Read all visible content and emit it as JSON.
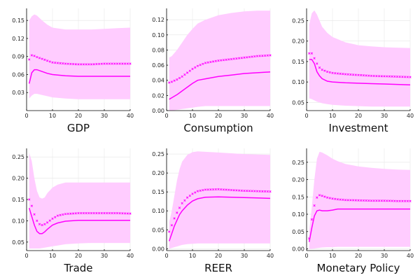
{
  "chart_data": [
    {
      "type": "line",
      "xlabel": "GDP",
      "xlim": [
        0,
        40
      ],
      "ylim": [
        0,
        0.17
      ],
      "xticks": [
        0,
        10,
        20,
        30,
        40
      ],
      "yticks": [
        0.03,
        0.06,
        0.09,
        0.12,
        0.15
      ],
      "ytick_labels": [
        "0.03",
        "0.06",
        "0.09",
        "0.12",
        "0.15"
      ],
      "colors": {
        "line": "#ff00ff",
        "band": "#ffccff"
      },
      "x": [
        1,
        2,
        3,
        4,
        6,
        8,
        10,
        15,
        20,
        25,
        30,
        35,
        40
      ],
      "band_upper": [
        0.15,
        0.157,
        0.16,
        0.158,
        0.15,
        0.143,
        0.138,
        0.135,
        0.135,
        0.135,
        0.136,
        0.137,
        0.138
      ],
      "band_lower": [
        0.02,
        0.025,
        0.028,
        0.028,
        0.026,
        0.024,
        0.022,
        0.02,
        0.019,
        0.019,
        0.019,
        0.019,
        0.019
      ],
      "line": [
        0.045,
        0.063,
        0.068,
        0.068,
        0.065,
        0.062,
        0.06,
        0.058,
        0.057,
        0.057,
        0.057,
        0.057,
        0.057
      ],
      "markers": [
        0.085,
        0.092,
        0.091,
        0.089,
        0.086,
        0.083,
        0.08,
        0.078,
        0.077,
        0.077,
        0.078,
        0.078,
        0.078
      ]
    },
    {
      "type": "line",
      "xlabel": "Consumption",
      "xlim": [
        0,
        40
      ],
      "ylim": [
        0,
        0.135
      ],
      "xticks": [
        0,
        10,
        20,
        30,
        40
      ],
      "yticks": [
        0.0,
        0.02,
        0.04,
        0.06,
        0.08,
        0.1,
        0.12
      ],
      "ytick_labels": [
        "0.00",
        "0.02",
        "0.04",
        "0.06",
        "0.08",
        "0.10",
        "0.12"
      ],
      "colors": {
        "line": "#ff00ff",
        "band": "#ffccff"
      },
      "x": [
        1,
        2,
        4,
        6,
        8,
        10,
        12,
        15,
        20,
        25,
        30,
        35,
        40
      ],
      "band_upper": [
        0.07,
        0.072,
        0.08,
        0.09,
        0.1,
        0.108,
        0.115,
        0.12,
        0.126,
        0.129,
        0.131,
        0.132,
        0.132
      ],
      "band_lower": [
        0.0,
        0.0,
        0.001,
        0.002,
        0.003,
        0.004,
        0.005,
        0.006,
        0.006,
        0.006,
        0.006,
        0.006,
        0.006
      ],
      "line": [
        0.015,
        0.017,
        0.021,
        0.026,
        0.031,
        0.036,
        0.04,
        0.042,
        0.045,
        0.047,
        0.049,
        0.05,
        0.051
      ],
      "markers": [
        0.037,
        0.038,
        0.041,
        0.045,
        0.05,
        0.055,
        0.059,
        0.063,
        0.066,
        0.068,
        0.07,
        0.072,
        0.073
      ]
    },
    {
      "type": "line",
      "xlabel": "Investment",
      "xlim": [
        0,
        40
      ],
      "ylim": [
        0.03,
        0.28
      ],
      "xticks": [
        0,
        10,
        20,
        30,
        40
      ],
      "yticks": [
        0.05,
        0.1,
        0.15,
        0.2,
        0.25
      ],
      "ytick_labels": [
        "0.05",
        "0.10",
        "0.15",
        "0.20",
        "0.25"
      ],
      "colors": {
        "line": "#ff00ff",
        "band": "#ffccff"
      },
      "x": [
        1,
        2,
        3,
        4,
        5,
        6,
        8,
        10,
        15,
        20,
        25,
        30,
        35,
        40
      ],
      "band_upper": [
        0.24,
        0.268,
        0.275,
        0.265,
        0.25,
        0.235,
        0.22,
        0.21,
        0.197,
        0.19,
        0.187,
        0.185,
        0.184,
        0.183
      ],
      "band_lower": [
        0.06,
        0.058,
        0.055,
        0.052,
        0.05,
        0.048,
        0.046,
        0.044,
        0.042,
        0.041,
        0.04,
        0.04,
        0.04,
        0.04
      ],
      "line": [
        0.155,
        0.155,
        0.145,
        0.125,
        0.115,
        0.108,
        0.102,
        0.1,
        0.098,
        0.097,
        0.096,
        0.095,
        0.094,
        0.093
      ],
      "markers": [
        0.17,
        0.17,
        0.158,
        0.145,
        0.135,
        0.13,
        0.125,
        0.122,
        0.119,
        0.117,
        0.115,
        0.114,
        0.113,
        0.112
      ]
    },
    {
      "type": "line",
      "xlabel": "Trade",
      "xlim": [
        0,
        40
      ],
      "ylim": [
        0.03,
        0.27
      ],
      "xticks": [
        0,
        10,
        20,
        30,
        40
      ],
      "yticks": [
        0.05,
        0.1,
        0.15,
        0.2,
        0.25
      ],
      "ytick_labels": [
        "0.05",
        "0.10",
        "0.15",
        "0.20",
        "0.25"
      ],
      "colors": {
        "line": "#ff00ff",
        "band": "#ffccff"
      },
      "x": [
        1,
        2,
        3,
        4,
        5,
        6,
        7,
        8,
        10,
        12,
        15,
        20,
        25,
        30,
        35,
        40
      ],
      "band_upper": [
        0.26,
        0.24,
        0.2,
        0.17,
        0.155,
        0.152,
        0.155,
        0.165,
        0.178,
        0.185,
        0.19,
        0.19,
        0.19,
        0.19,
        0.19,
        0.19
      ],
      "band_lower": [
        0.035,
        0.035,
        0.035,
        0.035,
        0.035,
        0.036,
        0.037,
        0.038,
        0.04,
        0.042,
        0.045,
        0.047,
        0.048,
        0.048,
        0.048,
        0.048
      ],
      "line": [
        0.13,
        0.11,
        0.09,
        0.075,
        0.07,
        0.07,
        0.074,
        0.08,
        0.09,
        0.095,
        0.099,
        0.101,
        0.101,
        0.101,
        0.101,
        0.101
      ],
      "markers": [
        0.15,
        0.135,
        0.115,
        0.1,
        0.092,
        0.09,
        0.092,
        0.096,
        0.105,
        0.112,
        0.116,
        0.118,
        0.118,
        0.118,
        0.118,
        0.117
      ]
    },
    {
      "type": "line",
      "xlabel": "REER",
      "xlim": [
        0,
        40
      ],
      "ylim": [
        -0.005,
        0.265
      ],
      "xticks": [
        0,
        10,
        20,
        30,
        40
      ],
      "yticks": [
        0.0,
        0.05,
        0.1,
        0.15,
        0.2,
        0.25
      ],
      "ytick_labels": [
        "0.00",
        "0.05",
        "0.10",
        "0.15",
        "0.20",
        "0.25"
      ],
      "colors": {
        "line": "#ff00ff",
        "band": "#ffccff"
      },
      "x": [
        1,
        2,
        3,
        4,
        5,
        6,
        8,
        10,
        12,
        15,
        20,
        25,
        30,
        35,
        40
      ],
      "band_upper": [
        0.07,
        0.1,
        0.14,
        0.18,
        0.21,
        0.23,
        0.248,
        0.255,
        0.257,
        0.256,
        0.254,
        0.252,
        0.25,
        0.249,
        0.248
      ],
      "band_lower": [
        0.0,
        0.002,
        0.004,
        0.006,
        0.008,
        0.01,
        0.012,
        0.013,
        0.014,
        0.014,
        0.014,
        0.014,
        0.014,
        0.014,
        0.014
      ],
      "line": [
        0.02,
        0.04,
        0.06,
        0.075,
        0.09,
        0.1,
        0.115,
        0.126,
        0.132,
        0.136,
        0.137,
        0.136,
        0.135,
        0.134,
        0.133
      ],
      "markers": [
        0.045,
        0.062,
        0.08,
        0.095,
        0.108,
        0.12,
        0.135,
        0.145,
        0.152,
        0.156,
        0.157,
        0.155,
        0.153,
        0.152,
        0.151
      ]
    },
    {
      "type": "line",
      "xlabel": "Monetary Policy",
      "xlim": [
        0,
        40
      ],
      "ylim": [
        -0.005,
        0.29
      ],
      "xticks": [
        0,
        10,
        20,
        30,
        40
      ],
      "yticks": [
        0.0,
        0.05,
        0.1,
        0.15,
        0.2,
        0.25
      ],
      "ytick_labels": [
        "0.00",
        "0.05",
        "0.10",
        "0.15",
        "0.20",
        "0.25"
      ],
      "colors": {
        "line": "#ff00ff",
        "band": "#ffccff"
      },
      "x": [
        1,
        2,
        3,
        4,
        5,
        6,
        8,
        10,
        12,
        15,
        20,
        25,
        30,
        35,
        40
      ],
      "band_upper": [
        0.05,
        0.12,
        0.2,
        0.26,
        0.28,
        0.278,
        0.27,
        0.26,
        0.253,
        0.245,
        0.238,
        0.234,
        0.231,
        0.229,
        0.228
      ],
      "band_lower": [
        0.0,
        0.0,
        0.001,
        0.002,
        0.003,
        0.004,
        0.005,
        0.005,
        0.006,
        0.006,
        0.006,
        0.006,
        0.006,
        0.006,
        0.006
      ],
      "line": [
        0.02,
        0.06,
        0.095,
        0.11,
        0.112,
        0.11,
        0.11,
        0.112,
        0.115,
        0.115,
        0.115,
        0.115,
        0.115,
        0.115,
        0.115
      ],
      "markers": [
        0.03,
        0.085,
        0.125,
        0.148,
        0.155,
        0.153,
        0.148,
        0.145,
        0.143,
        0.141,
        0.14,
        0.139,
        0.139,
        0.138,
        0.138
      ]
    }
  ]
}
